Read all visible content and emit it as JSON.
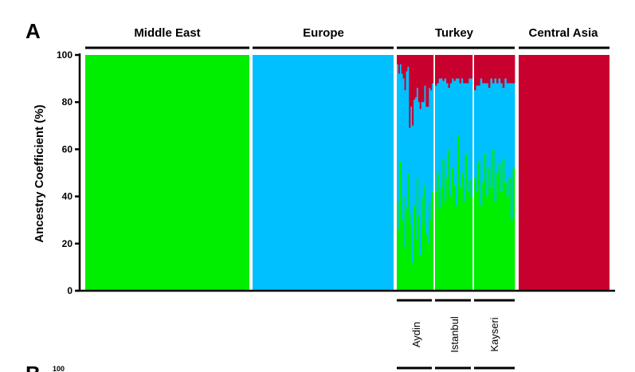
{
  "panels": {
    "a": "A",
    "b": "B"
  },
  "next_panel_tick": "100",
  "colors": {
    "middle_east": "#00ee00",
    "europe": "#00c0ff",
    "central_asia": "#c8002e"
  },
  "chart_data": {
    "type": "bar",
    "stacked": true,
    "ylabel": "Ancestry Coefficient (%)",
    "ylim": [
      0,
      100
    ],
    "yticks": [
      0,
      20,
      40,
      60,
      80,
      100
    ],
    "groups": [
      "Middle East",
      "Europe",
      "Turkey",
      "Central Asia"
    ],
    "subgroups": [
      "Aydin",
      "Istanbul",
      "Kayseri"
    ],
    "reference_groups": [
      {
        "group": "Middle East",
        "components": [
          100,
          0,
          0
        ]
      },
      {
        "group": "Europe",
        "components": [
          0,
          100,
          0
        ]
      },
      {
        "group": "Central Asia",
        "components": [
          0,
          0,
          100
        ]
      }
    ],
    "turkey_individuals": {
      "Aydin": [
        [
          38,
          58,
          4
        ],
        [
          26,
          66,
          8
        ],
        [
          55,
          41,
          4
        ],
        [
          30,
          62,
          8
        ],
        [
          40,
          50,
          10
        ],
        [
          18,
          67,
          15
        ],
        [
          35,
          58,
          7
        ],
        [
          50,
          45,
          5
        ],
        [
          33,
          36,
          31
        ],
        [
          28,
          50,
          22
        ],
        [
          12,
          58,
          30
        ],
        [
          36,
          45,
          19
        ],
        [
          22,
          60,
          18
        ],
        [
          48,
          38,
          14
        ],
        [
          32,
          48,
          20
        ],
        [
          15,
          62,
          23
        ],
        [
          40,
          40,
          20
        ],
        [
          28,
          52,
          20
        ],
        [
          45,
          42,
          13
        ],
        [
          24,
          54,
          22
        ],
        [
          20,
          58,
          22
        ],
        [
          38,
          48,
          14
        ],
        [
          30,
          55,
          15
        ],
        [
          42,
          46,
          12
        ]
      ],
      "Istanbul": [
        [
          42,
          45,
          13
        ],
        [
          50,
          38,
          12
        ],
        [
          35,
          55,
          10
        ],
        [
          44,
          46,
          10
        ],
        [
          56,
          33,
          11
        ],
        [
          38,
          52,
          10
        ],
        [
          48,
          40,
          12
        ],
        [
          60,
          26,
          14
        ],
        [
          40,
          48,
          12
        ],
        [
          52,
          38,
          10
        ],
        [
          45,
          44,
          11
        ],
        [
          36,
          54,
          10
        ],
        [
          66,
          24,
          10
        ],
        [
          44,
          44,
          12
        ],
        [
          50,
          40,
          10
        ],
        [
          38,
          50,
          12
        ],
        [
          58,
          30,
          12
        ],
        [
          42,
          46,
          12
        ],
        [
          47,
          43,
          10
        ],
        [
          40,
          50,
          10
        ]
      ],
      "Kayseri": [
        [
          48,
          37,
          15
        ],
        [
          42,
          45,
          13
        ],
        [
          55,
          32,
          13
        ],
        [
          36,
          54,
          10
        ],
        [
          46,
          42,
          12
        ],
        [
          58,
          30,
          12
        ],
        [
          40,
          48,
          12
        ],
        [
          52,
          34,
          14
        ],
        [
          44,
          46,
          10
        ],
        [
          60,
          28,
          12
        ],
        [
          38,
          52,
          10
        ],
        [
          50,
          38,
          12
        ],
        [
          54,
          36,
          10
        ],
        [
          42,
          46,
          12
        ],
        [
          56,
          30,
          14
        ],
        [
          46,
          44,
          10
        ],
        [
          40,
          48,
          12
        ],
        [
          48,
          40,
          12
        ],
        [
          30,
          58,
          12
        ],
        [
          52,
          36,
          12
        ]
      ]
    }
  }
}
